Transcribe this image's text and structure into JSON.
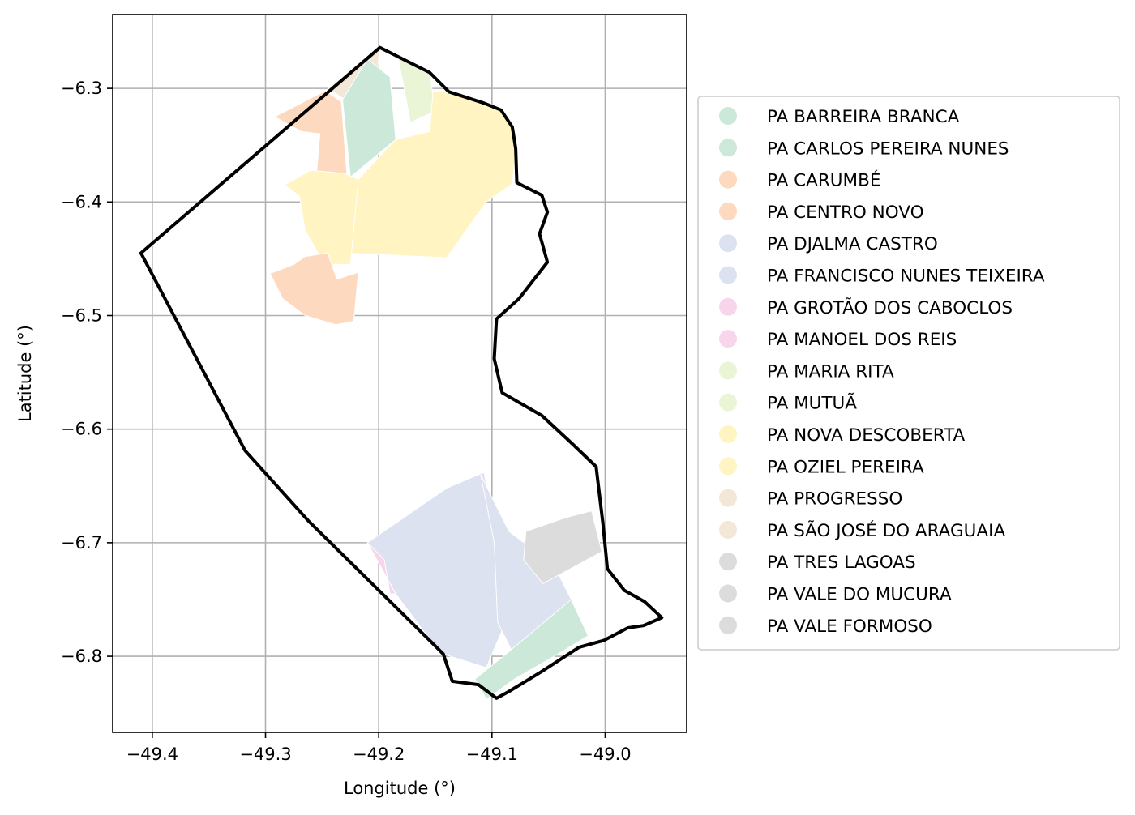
{
  "chart_data": {
    "type": "map",
    "xlabel": "Longitude (°)",
    "ylabel": "Latitude (°)",
    "xlim": [
      -49.435,
      -48.928
    ],
    "ylim": [
      -6.867,
      -6.235
    ],
    "xticks": [
      -49.4,
      -49.3,
      -49.2,
      -49.1,
      -49.0
    ],
    "xtick_labels": [
      "−49.4",
      "−49.3",
      "−49.2",
      "−49.1",
      "−49.0"
    ],
    "yticks": [
      -6.3,
      -6.4,
      -6.5,
      -6.6,
      -6.7,
      -6.8
    ],
    "ytick_labels": [
      "−6.3",
      "−6.4",
      "−6.5",
      "−6.6",
      "−6.7",
      "−6.8"
    ],
    "grid": true,
    "legend_position": "right, outside plot",
    "legend": [
      {
        "label": "PA BARREIRA BRANCA",
        "color": "#cce8d9"
      },
      {
        "label": "PA CARLOS PEREIRA NUNES",
        "color": "#cce8d9"
      },
      {
        "label": "PA CARUMBÉ",
        "color": "#fdd9bf"
      },
      {
        "label": "PA CENTRO NOVO",
        "color": "#fdd9bf"
      },
      {
        "label": "PA DJALMA CASTRO",
        "color": "#dde2f0"
      },
      {
        "label": "PA FRANCISCO NUNES TEIXEIRA",
        "color": "#dde2f0"
      },
      {
        "label": "PA GROTÃO DOS CABOCLOS",
        "color": "#f7d6eb"
      },
      {
        "label": "PA MANOEL DOS REIS",
        "color": "#f7d6eb"
      },
      {
        "label": "PA MARIA RITA",
        "color": "#e9f5d6"
      },
      {
        "label": "PA MUTUÃ",
        "color": "#e9f5d6"
      },
      {
        "label": "PA NOVA DESCOBERTA",
        "color": "#fff4c2"
      },
      {
        "label": "PA OZIEL PEREIRA",
        "color": "#fff4c2"
      },
      {
        "label": "PA PROGRESSO",
        "color": "#f3e7d8"
      },
      {
        "label": "PA SÃO JOSÉ DO ARAGUAIA",
        "color": "#f3e7d8"
      },
      {
        "label": "PA TRES LAGOAS",
        "color": "#dcdcdc"
      },
      {
        "label": "PA VALE DO MUCURA",
        "color": "#dcdcdc"
      },
      {
        "label": "PA VALE FORMOSO",
        "color": "#dcdcdc"
      }
    ],
    "boundary": [
      [
        -49.199,
        -6.264
      ],
      [
        -49.183,
        -6.272
      ],
      [
        -49.155,
        -6.286
      ],
      [
        -49.138,
        -6.303
      ],
      [
        -49.107,
        -6.313
      ],
      [
        -49.092,
        -6.319
      ],
      [
        -49.082,
        -6.334
      ],
      [
        -49.079,
        -6.353
      ],
      [
        -49.078,
        -6.383
      ],
      [
        -49.056,
        -6.394
      ],
      [
        -49.051,
        -6.409
      ],
      [
        -49.058,
        -6.428
      ],
      [
        -49.051,
        -6.453
      ],
      [
        -49.076,
        -6.485
      ],
      [
        -49.096,
        -6.503
      ],
      [
        -49.098,
        -6.538
      ],
      [
        -49.091,
        -6.568
      ],
      [
        -49.056,
        -6.588
      ],
      [
        -49.029,
        -6.613
      ],
      [
        -49.008,
        -6.633
      ],
      [
        -49.002,
        -6.683
      ],
      [
        -48.998,
        -6.723
      ],
      [
        -48.983,
        -6.742
      ],
      [
        -48.965,
        -6.752
      ],
      [
        -48.95,
        -6.766
      ],
      [
        -48.966,
        -6.773
      ],
      [
        -48.98,
        -6.775
      ],
      [
        -49.001,
        -6.786
      ],
      [
        -49.023,
        -6.792
      ],
      [
        -49.057,
        -6.814
      ],
      [
        -49.085,
        -6.831
      ],
      [
        -49.096,
        -6.837
      ],
      [
        -49.112,
        -6.825
      ],
      [
        -49.135,
        -6.822
      ],
      [
        -49.143,
        -6.798
      ],
      [
        -49.152,
        -6.789
      ],
      [
        -49.262,
        -6.681
      ],
      [
        -49.318,
        -6.619
      ],
      [
        -49.41,
        -6.445
      ],
      [
        -49.199,
        -6.264
      ]
    ],
    "parcels": [
      {
        "name": "PA PROGRESSO",
        "color": "#f3e7d8",
        "coords": [
          [
            -49.199,
            -6.264
          ],
          [
            -49.245,
            -6.3
          ],
          [
            -49.23,
            -6.31
          ],
          [
            -49.203,
            -6.3
          ]
        ]
      },
      {
        "name": "PA CARUMBÉ",
        "color": "#fdd9bf",
        "coords": [
          [
            -49.247,
            -6.302
          ],
          [
            -49.233,
            -6.312
          ],
          [
            -49.228,
            -6.378
          ],
          [
            -49.255,
            -6.375
          ],
          [
            -49.252,
            -6.34
          ],
          [
            -49.268,
            -6.338
          ],
          [
            -49.292,
            -6.325
          ]
        ]
      },
      {
        "name": "PA BARREIRA BRANCA",
        "color": "#cce8d9",
        "coords": [
          [
            -49.21,
            -6.274
          ],
          [
            -49.232,
            -6.31
          ],
          [
            -49.225,
            -6.378
          ],
          [
            -49.185,
            -6.345
          ],
          [
            -49.19,
            -6.29
          ]
        ]
      },
      {
        "name": "PA MUTUÃ",
        "color": "#e9f5d6",
        "coords": [
          [
            -49.199,
            -6.264
          ],
          [
            -49.155,
            -6.286
          ],
          [
            -49.15,
            -6.32
          ],
          [
            -49.172,
            -6.33
          ],
          [
            -49.183,
            -6.272
          ]
        ]
      },
      {
        "name": "PA NOVA DESCOBERTA",
        "color": "#fff4c2",
        "coords": [
          [
            -49.152,
            -6.302
          ],
          [
            -49.13,
            -6.305
          ],
          [
            -49.107,
            -6.313
          ],
          [
            -49.092,
            -6.319
          ],
          [
            -49.082,
            -6.334
          ],
          [
            -49.079,
            -6.353
          ],
          [
            -49.082,
            -6.384
          ],
          [
            -49.105,
            -6.4
          ],
          [
            -49.125,
            -6.428
          ],
          [
            -49.14,
            -6.449
          ],
          [
            -49.23,
            -6.445
          ],
          [
            -49.218,
            -6.38
          ],
          [
            -49.185,
            -6.345
          ],
          [
            -49.155,
            -6.338
          ]
        ]
      },
      {
        "name": "PA OZIEL PEREIRA",
        "color": "#fff4c2",
        "coords": [
          [
            -49.23,
            -6.375
          ],
          [
            -49.218,
            -6.38
          ],
          [
            -49.225,
            -6.455
          ],
          [
            -49.248,
            -6.455
          ],
          [
            -49.265,
            -6.425
          ],
          [
            -49.27,
            -6.395
          ],
          [
            -49.283,
            -6.385
          ],
          [
            -49.26,
            -6.372
          ]
        ]
      },
      {
        "name": "PA CENTRO NOVO",
        "color": "#fdd9bf",
        "coords": [
          [
            -49.275,
            -6.455
          ],
          [
            -49.265,
            -6.448
          ],
          [
            -49.245,
            -6.445
          ],
          [
            -49.237,
            -6.468
          ],
          [
            -49.218,
            -6.462
          ],
          [
            -49.222,
            -6.505
          ],
          [
            -49.238,
            -6.508
          ],
          [
            -49.265,
            -6.5
          ],
          [
            -49.285,
            -6.485
          ],
          [
            -49.296,
            -6.463
          ]
        ]
      },
      {
        "name": "PA FRANCISCO NUNES TEIXEIRA",
        "color": "#dde2f0",
        "coords": [
          [
            -49.107,
            -6.638
          ],
          [
            -49.14,
            -6.652
          ],
          [
            -49.21,
            -6.7
          ],
          [
            -49.185,
            -6.745
          ],
          [
            -49.152,
            -6.789
          ],
          [
            -49.143,
            -6.798
          ],
          [
            -49.105,
            -6.81
          ],
          [
            -49.09,
            -6.775
          ],
          [
            -49.095,
            -6.73
          ],
          [
            -49.1,
            -6.675
          ]
        ]
      },
      {
        "name": "PA DJALMA CASTRO",
        "color": "#dde2f0",
        "coords": [
          [
            -49.11,
            -6.64
          ],
          [
            -49.085,
            -6.69
          ],
          [
            -49.045,
            -6.72
          ],
          [
            -49.03,
            -6.75
          ],
          [
            -49.045,
            -6.79
          ],
          [
            -49.08,
            -6.8
          ],
          [
            -49.095,
            -6.77
          ],
          [
            -49.098,
            -6.7
          ]
        ]
      },
      {
        "name": "PA GROTÃO DOS CABOCLOS",
        "color": "#f7d6eb",
        "coords": [
          [
            -49.21,
            -6.7
          ],
          [
            -49.195,
            -6.715
          ],
          [
            -49.19,
            -6.745
          ],
          [
            -49.185,
            -6.745
          ]
        ]
      },
      {
        "name": "PA TRES LAGOAS",
        "color": "#dcdcdc",
        "coords": [
          [
            -49.035,
            -6.678
          ],
          [
            -49.07,
            -6.69
          ],
          [
            -49.072,
            -6.715
          ],
          [
            -49.055,
            -6.736
          ],
          [
            -49.003,
            -6.708
          ],
          [
            -49.012,
            -6.672
          ]
        ]
      },
      {
        "name": "PA CARLOS PEREIRA NUNES",
        "color": "#cce8d9",
        "coords": [
          [
            -49.03,
            -6.75
          ],
          [
            -49.015,
            -6.782
          ],
          [
            -49.045,
            -6.8
          ],
          [
            -49.08,
            -6.82
          ],
          [
            -49.105,
            -6.838
          ],
          [
            -49.115,
            -6.82
          ],
          [
            -49.09,
            -6.8
          ]
        ]
      }
    ]
  }
}
